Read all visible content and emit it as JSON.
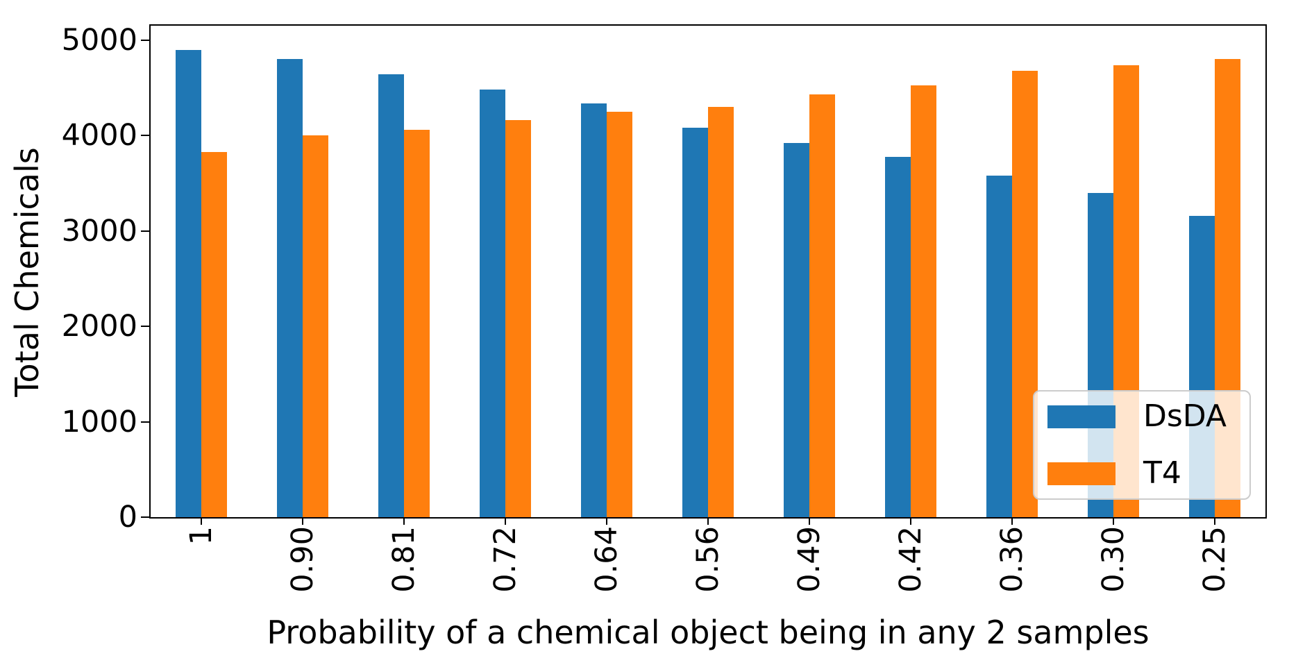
{
  "figure": {
    "background": "#ffffff",
    "spine_color": "#000000",
    "legend_border_color": "#cccccc"
  },
  "chart_data": {
    "type": "bar",
    "title": "",
    "xlabel": "Probability of a chemical object being in any 2 samples",
    "ylabel": "Total Chemicals",
    "categories": [
      "1",
      "0.90",
      "0.81",
      "0.72",
      "0.64",
      "0.56",
      "0.49",
      "0.42",
      "0.36",
      "0.30",
      "0.25"
    ],
    "series": [
      {
        "name": "DsDA",
        "color": "#1f77b4",
        "values": [
          4900,
          4800,
          4640,
          4480,
          4340,
          4080,
          3920,
          3780,
          3580,
          3400,
          3160
        ]
      },
      {
        "name": "T4",
        "color": "#ff7f0e",
        "values": [
          3830,
          4000,
          4060,
          4160,
          4250,
          4300,
          4430,
          4530,
          4680,
          4740,
          4800
        ]
      }
    ],
    "yticks": [
      0,
      1000,
      2000,
      3000,
      4000,
      5000
    ],
    "ylim": [
      0,
      5000
    ],
    "grid": false,
    "legend": {
      "entries": [
        "DsDA",
        "T4"
      ],
      "position": "lower right"
    }
  }
}
